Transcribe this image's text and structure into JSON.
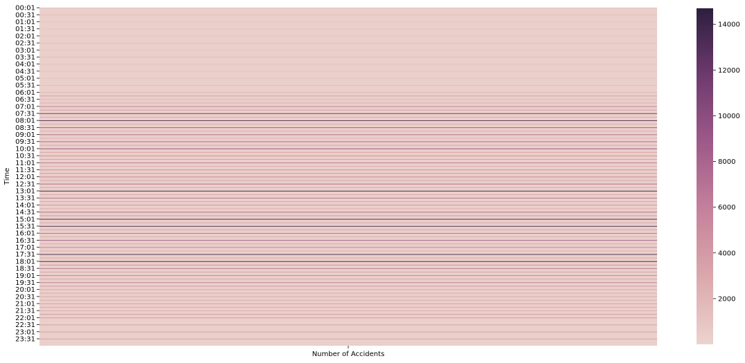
{
  "chart_data": {
    "type": "heatmap",
    "title": "",
    "xlabel": "Number of Accidents",
    "ylabel": "Time",
    "x_categories": [
      ""
    ],
    "y_tick_labels": [
      "00:01",
      "00:31",
      "01:01",
      "01:31",
      "02:01",
      "02:31",
      "03:01",
      "03:31",
      "04:01",
      "04:31",
      "05:01",
      "05:31",
      "06:01",
      "06:31",
      "07:01",
      "07:31",
      "08:01",
      "08:31",
      "09:01",
      "09:31",
      "10:01",
      "10:31",
      "11:01",
      "11:31",
      "12:01",
      "12:31",
      "13:01",
      "13:31",
      "14:01",
      "14:31",
      "15:01",
      "15:31",
      "16:01",
      "16:31",
      "17:01",
      "17:31",
      "18:01",
      "18:31",
      "19:01",
      "19:31",
      "20:01",
      "20:31",
      "21:01",
      "21:31",
      "22:01",
      "22:31",
      "23:01",
      "23:31"
    ],
    "colorbar": {
      "min": 0,
      "max": 14700,
      "ticks": [
        2000,
        4000,
        6000,
        8000,
        10000,
        12000,
        14000
      ],
      "tick_labels": [
        "2000",
        "4000",
        "6000",
        "8000",
        "10000",
        "12000",
        "14000"
      ],
      "colors": [
        "#ecd3cd",
        "#dba8ac",
        "#c5819b",
        "#9e5a89",
        "#6e3a6e",
        "#2d1e3e"
      ]
    },
    "grid": false,
    "notes": "Heatmap of accident counts per minute-of-day (one column). Most cells are near the low end; bright/dark horizontal lines mark peak minutes near the half-hour and hour marks (values estimated)."
  }
}
